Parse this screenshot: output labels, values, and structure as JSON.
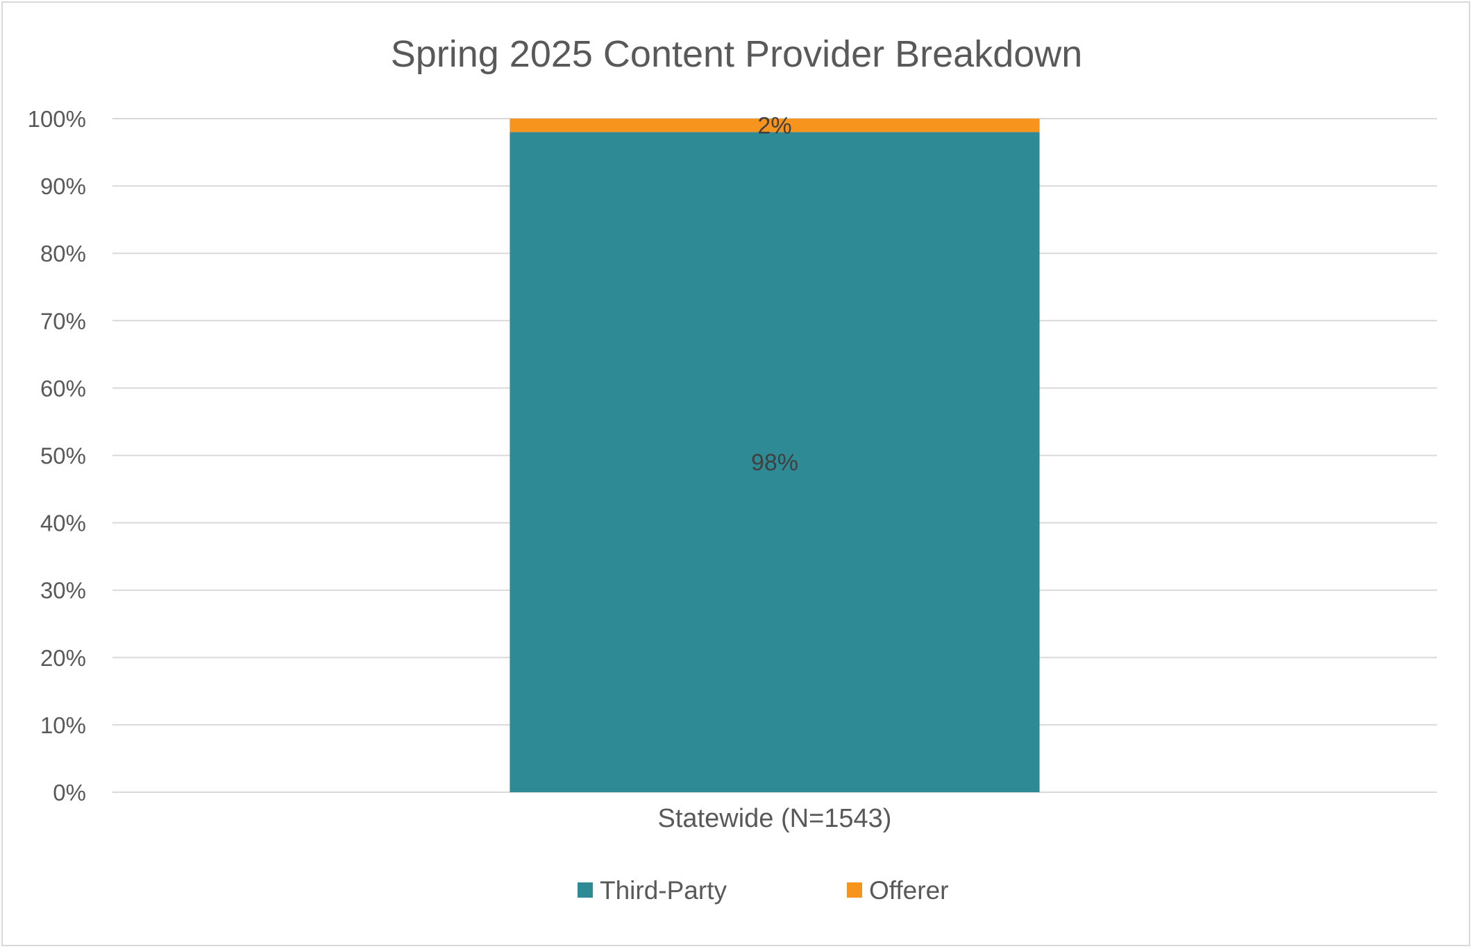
{
  "chart_data": {
    "type": "bar",
    "stacked": true,
    "title": "Spring 2025 Content Provider Breakdown",
    "categories": [
      "Statewide (N=1543)"
    ],
    "series": [
      {
        "name": "Third-Party",
        "values": [
          98
        ],
        "labels": [
          "98%"
        ],
        "color": "#2e8b95"
      },
      {
        "name": "Offerer",
        "values": [
          2
        ],
        "labels": [
          "2%"
        ],
        "color": "#f7941d"
      }
    ],
    "ylim": [
      0,
      100
    ],
    "yticks": [
      0,
      10,
      20,
      30,
      40,
      50,
      60,
      70,
      80,
      90,
      100
    ],
    "ytick_labels": [
      "0%",
      "10%",
      "20%",
      "30%",
      "40%",
      "50%",
      "60%",
      "70%",
      "80%",
      "90%",
      "100%"
    ],
    "grid": true,
    "legend_position": "bottom"
  }
}
